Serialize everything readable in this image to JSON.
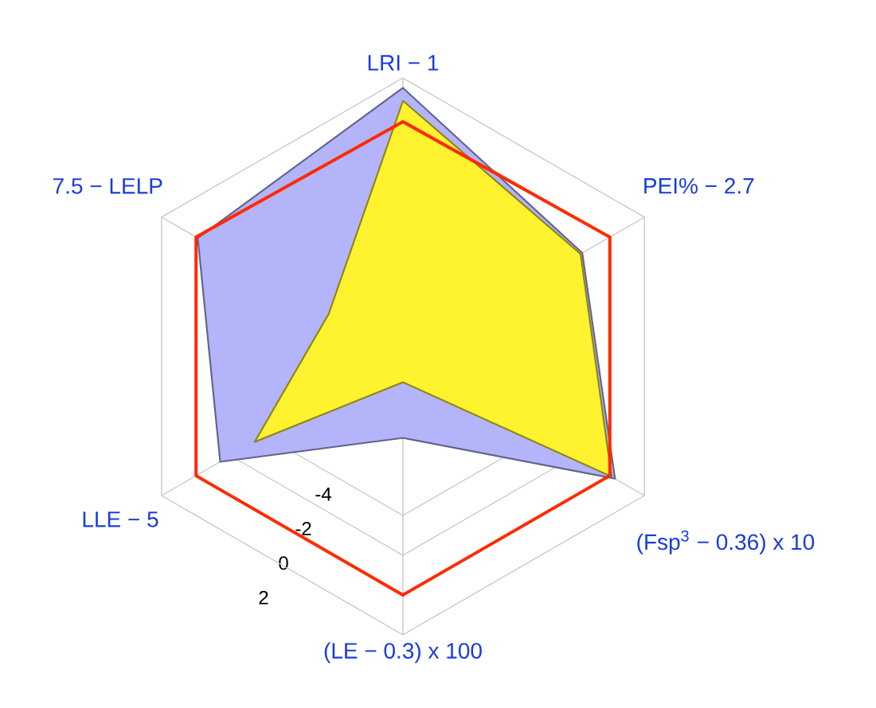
{
  "chart_data": {
    "type": "radar",
    "categories": [
      "LRI − 1",
      "PEI% − 2.7",
      "(Fsp$^{3}$ − 0.36) x 10",
      "(LE − 0.3) x 100",
      "LLE −  5",
      "7.5 − LELP"
    ],
    "series": [
      {
        "type": "area",
        "color": "#b4b4fb",
        "values": [
          1.5,
          -1.6,
          0.3,
          -7.9,
          -1.4,
          -0.1
        ]
      },
      {
        "type": "area",
        "color": "#fff22e",
        "values": [
          0.85,
          -1.7,
          0.1,
          -10.7,
          -3.4,
          -7.7
        ]
      },
      {
        "color": "#ff2a00",
        "values": [
          -0.2,
          0,
          0,
          0,
          0,
          0
        ]
      }
    ],
    "ylim": [
      -12,
      2
    ],
    "yticks": [
      -4,
      -2,
      0,
      2
    ],
    "grid": true
  }
}
